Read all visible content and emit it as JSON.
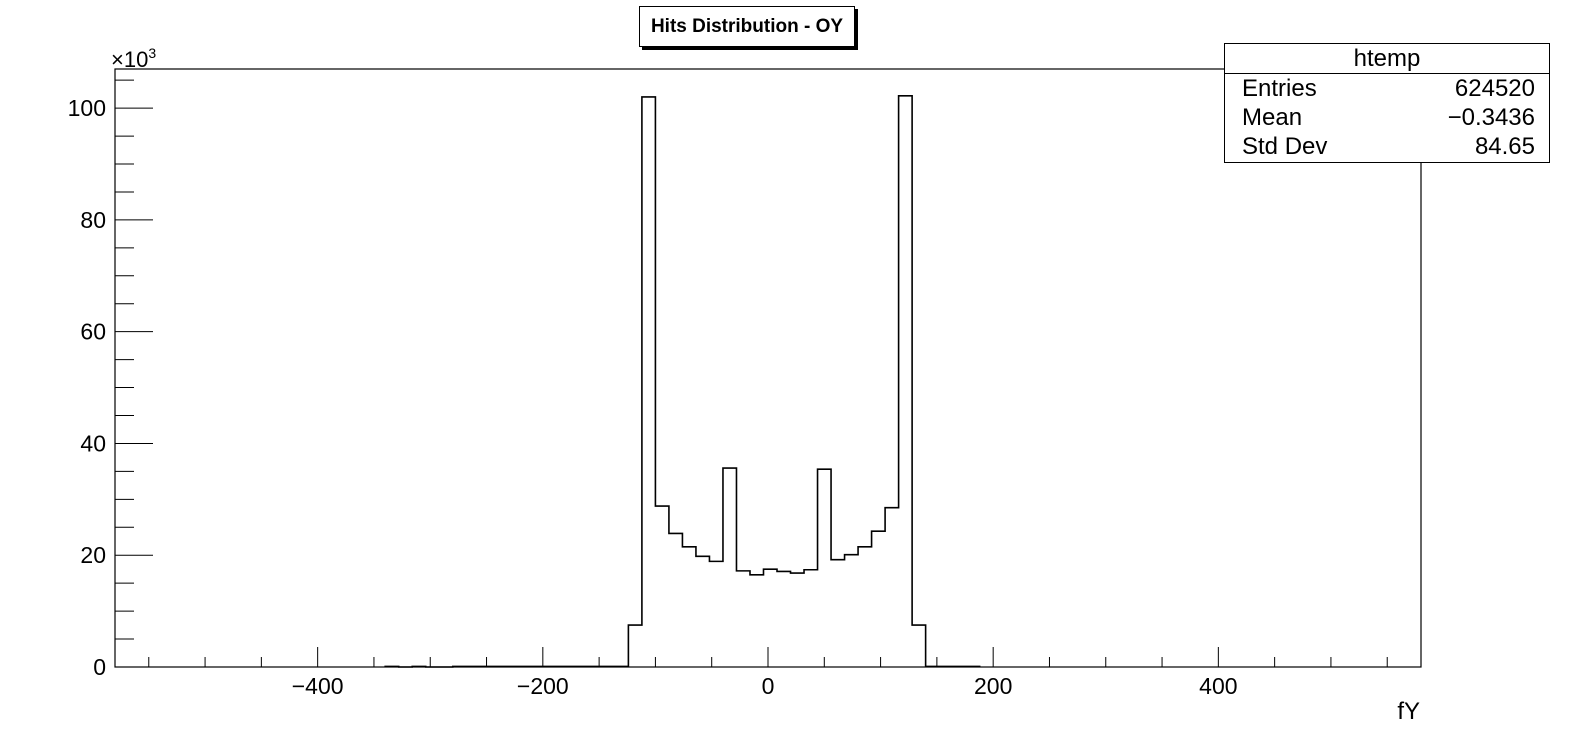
{
  "chart_data": {
    "type": "bar",
    "title": "Hits Distribution - OY",
    "xlabel": "fY",
    "ylabel": "",
    "y_multiplier_label": "×10",
    "y_multiplier_exponent": "3",
    "xlim": [
      -580,
      580
    ],
    "ylim": [
      0,
      107
    ],
    "x_ticks": [
      -400,
      -200,
      0,
      200,
      400
    ],
    "x_tick_labels": [
      "−400",
      "−200",
      "0",
      "200",
      "400"
    ],
    "y_ticks": [
      0,
      20,
      40,
      60,
      80,
      100
    ],
    "y_tick_labels": [
      "0",
      "20",
      "40",
      "60",
      "80",
      "100"
    ],
    "bin_width": 12,
    "bin_edges": [
      -340,
      -328,
      -316,
      -304,
      -292,
      -280,
      -268,
      -256,
      -244,
      -232,
      -220,
      -208,
      -196,
      -184,
      -172,
      -160,
      -148,
      -136,
      -124,
      -112,
      -100,
      -88,
      -76,
      -64,
      -52,
      -40,
      -28,
      -16,
      -4,
      8,
      20,
      32,
      44,
      56,
      68,
      80,
      92,
      104,
      116,
      128,
      140,
      152,
      164,
      176,
      188
    ],
    "values": [
      0.1,
      0,
      0.1,
      0,
      0,
      0.1,
      0.1,
      0.1,
      0.1,
      0.1,
      0.1,
      0.1,
      0.1,
      0.1,
      0.1,
      0.1,
      0.1,
      0.1,
      7.5,
      102.0,
      28.8,
      23.9,
      21.5,
      19.8,
      18.9,
      35.6,
      17.2,
      16.5,
      17.5,
      17.1,
      16.8,
      17.4,
      35.4,
      19.2,
      20.1,
      21.5,
      24.3,
      28.5,
      102.2,
      7.5,
      0.1,
      0.1,
      0.1,
      0.1
    ],
    "grid": false,
    "stats": {
      "name": "htemp",
      "rows": [
        {
          "label": "Entries",
          "value": "624520"
        },
        {
          "label": "Mean",
          "value": "−0.3436"
        },
        {
          "label": "Std Dev",
          "value": "84.65"
        }
      ]
    }
  }
}
